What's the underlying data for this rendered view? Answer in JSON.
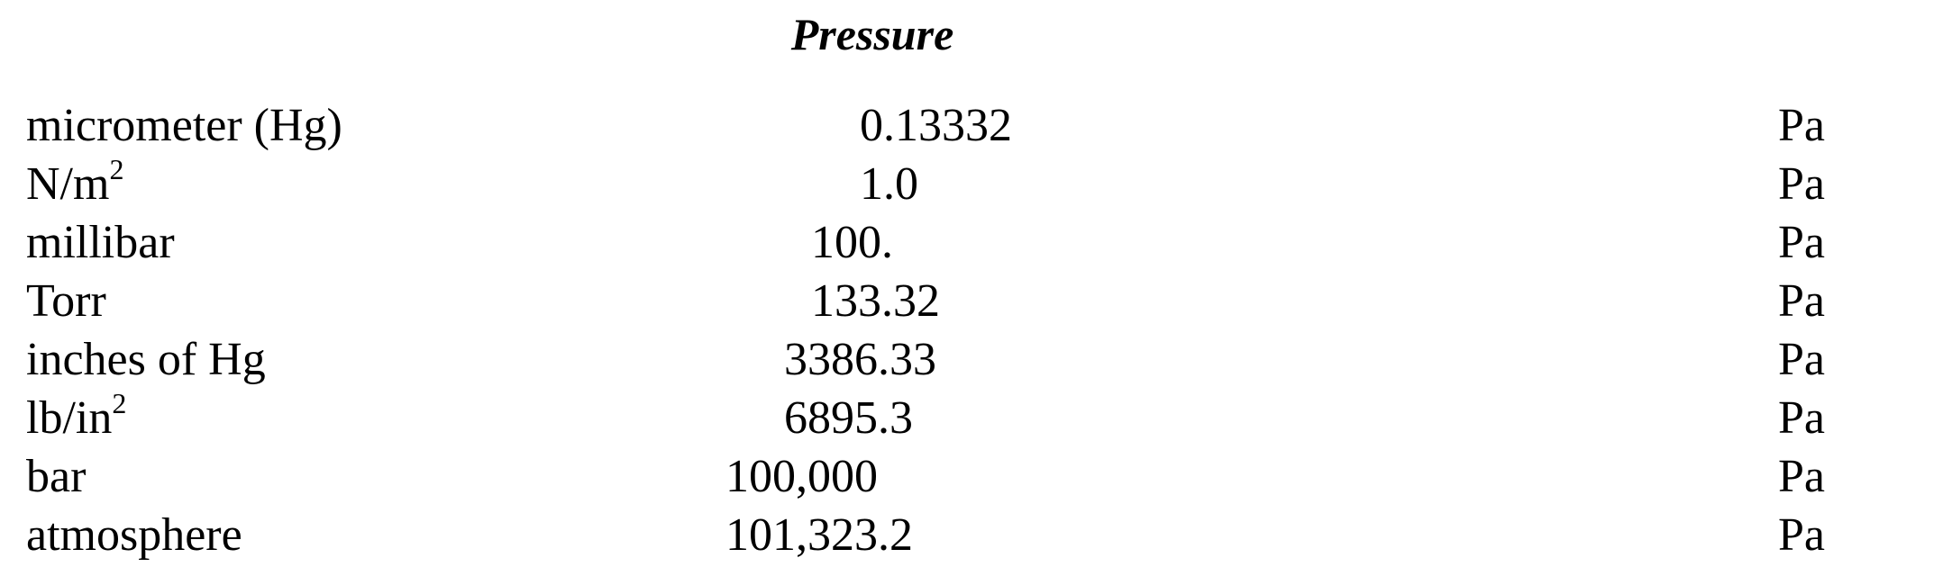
{
  "title": "Pressure",
  "rows": [
    {
      "unit": "micrometer (Hg)",
      "sup": "",
      "factor": "0.13332",
      "target": "Pa"
    },
    {
      "unit": "N/m",
      "sup": "2",
      "factor": "1.0",
      "target": "Pa"
    },
    {
      "unit": "millibar",
      "sup": "",
      "factor": "100.",
      "target": "Pa"
    },
    {
      "unit": "Torr",
      "sup": "",
      "factor": "133.32",
      "target": "Pa"
    },
    {
      "unit": "inches of Hg",
      "sup": "",
      "factor": "3386.33",
      "target": "Pa"
    },
    {
      "unit": "lb/in",
      "sup": "2",
      "factor": "6895.3",
      "target": "Pa"
    },
    {
      "unit": "bar",
      "sup": "",
      "factor": "100,000",
      "target": "Pa"
    },
    {
      "unit": "atmosphere",
      "sup": "",
      "factor": "101,323.2",
      "target": "Pa"
    }
  ]
}
